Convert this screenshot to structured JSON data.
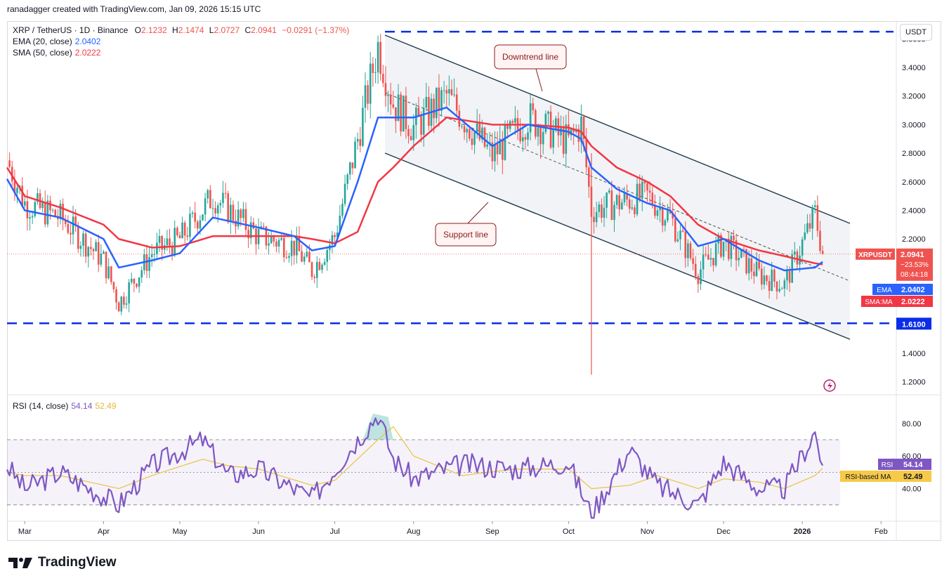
{
  "header": {
    "credit": "ranadagger created with TradingView.com, Jan 09, 2026 15:15 UTC"
  },
  "legend": {
    "symbol": "XRP / TetherUS · 1D · Binance",
    "o_label": "O",
    "o": "2.1232",
    "h_label": "H",
    "h": "2.1474",
    "l_label": "L",
    "l": "2.0727",
    "c_label": "C",
    "c": "2.0941",
    "change": "−0.0291 (−1.37%)",
    "ema_label": "EMA (20, close)",
    "ema_value": "2.0402",
    "sma_label": "SMA (50, close)",
    "sma_value": "2.0222",
    "rsi_label": "RSI (14, close)",
    "rsi_value": "54.14",
    "rsi_ma_value": "52.49"
  },
  "currency_button": "USDT",
  "annotations": {
    "downtrend": "Downtrend line",
    "support": "Support line"
  },
  "price_axis": {
    "ticks": [
      "3.6000",
      "3.4000",
      "3.2000",
      "3.0000",
      "2.8000",
      "2.6000",
      "2.4000",
      "2.2000",
      "1.4000",
      "1.2000"
    ],
    "tick_values": [
      3.6,
      3.4,
      3.2,
      3.0,
      2.8,
      2.6,
      2.4,
      2.2,
      1.4,
      1.2
    ],
    "last_label": "XRPUSDT",
    "last_value": "2.0941",
    "last_change": "−23.53%",
    "countdown": "08:44:18",
    "ema_tag": "EMA",
    "ema_tag_value": "2.0402",
    "sma_tag": "SMA:MA",
    "sma_tag_value": "2.0222",
    "level_tag": "1.6100"
  },
  "rsi_axis": {
    "ticks": [
      "80.00",
      "60.00",
      "40.00"
    ],
    "tick_values": [
      80,
      60,
      40
    ],
    "rsi_tag": "RSI",
    "rsi_tag_value": "54.14",
    "ma_tag": "RSI-based MA",
    "ma_tag_value": "52.49"
  },
  "time_axis": {
    "labels": [
      "Mar",
      "Apr",
      "May",
      "Jun",
      "Jul",
      "Aug",
      "Sep",
      "Oct",
      "Nov",
      "Dec",
      "2026",
      "Feb"
    ]
  },
  "colors": {
    "up": "#26a69a",
    "down": "#ef5350",
    "ema": "#2962ff",
    "sma": "#f23645",
    "rsi": "#7e57c2",
    "rsi_ma": "#f7c948",
    "level": "#0a2ee8",
    "trendline": "#1e3a4c"
  },
  "brand": {
    "name": "TradingView"
  },
  "chart_data": [
    {
      "type": "line",
      "title": "XRP / TetherUS · 1D · Binance",
      "x": [
        "2025-02-22",
        "2025-03-01",
        "2025-03-15",
        "2025-04-01",
        "2025-04-07",
        "2025-04-20",
        "2025-05-01",
        "2025-05-14",
        "2025-06-01",
        "2025-06-15",
        "2025-06-22",
        "2025-07-01",
        "2025-07-10",
        "2025-07-18",
        "2025-07-24",
        "2025-08-01",
        "2025-08-14",
        "2025-09-01",
        "2025-09-15",
        "2025-10-01",
        "2025-10-06",
        "2025-10-10",
        "2025-10-20",
        "2025-11-01",
        "2025-11-10",
        "2025-11-21",
        "2025-12-01",
        "2025-12-15",
        "2025-12-25",
        "2026-01-06",
        "2026-01-09"
      ],
      "series": [
        {
          "name": "XRPUSDT",
          "values": [
            2.75,
            2.45,
            2.35,
            2.05,
            1.75,
            2.1,
            2.2,
            2.5,
            2.22,
            2.15,
            1.98,
            2.22,
            2.9,
            3.55,
            3.15,
            2.98,
            3.2,
            2.78,
            3.05,
            2.88,
            3.0,
            2.4,
            2.45,
            2.5,
            2.35,
            1.97,
            2.18,
            1.95,
            1.88,
            2.38,
            2.0941
          ]
        },
        {
          "name": "EMA (20, close)",
          "values": [
            2.62,
            2.4,
            2.35,
            2.2,
            2.0,
            2.05,
            2.1,
            2.35,
            2.28,
            2.22,
            2.12,
            2.15,
            2.6,
            3.05,
            3.05,
            3.05,
            3.12,
            2.85,
            3.0,
            2.95,
            2.9,
            2.7,
            2.55,
            2.45,
            2.4,
            2.15,
            2.2,
            2.05,
            1.98,
            2.0,
            2.0402
          ]
        },
        {
          "name": "SMA (50, close)",
          "values": [
            2.7,
            2.5,
            2.42,
            2.3,
            2.2,
            2.14,
            2.15,
            2.22,
            2.22,
            2.22,
            2.2,
            2.17,
            2.25,
            2.6,
            2.7,
            2.85,
            3.05,
            3.0,
            3.0,
            2.98,
            2.95,
            2.85,
            2.7,
            2.6,
            2.5,
            2.3,
            2.2,
            2.12,
            2.08,
            2.03,
            2.0222
          ]
        }
      ],
      "levels": [
        3.65,
        1.61
      ],
      "ylim": [
        1.12,
        3.7
      ],
      "ylabel": ""
    },
    {
      "type": "line",
      "title": "RSI (14, close)",
      "x": [
        "2025-02-22",
        "2025-03-01",
        "2025-03-15",
        "2025-04-07",
        "2025-04-20",
        "2025-05-10",
        "2025-05-20",
        "2025-06-01",
        "2025-06-22",
        "2025-07-01",
        "2025-07-18",
        "2025-07-24",
        "2025-08-01",
        "2025-08-20",
        "2025-09-10",
        "2025-10-01",
        "2025-10-10",
        "2025-10-25",
        "2025-11-05",
        "2025-11-21",
        "2025-12-01",
        "2025-12-15",
        "2025-12-25",
        "2026-01-06",
        "2026-01-09"
      ],
      "series": [
        {
          "name": "RSI",
          "values": [
            54,
            40,
            50,
            30,
            54,
            70,
            48,
            52,
            34,
            52,
            86,
            58,
            46,
            55,
            52,
            56,
            24,
            64,
            42,
            30,
            56,
            40,
            40,
            75,
            54.14
          ]
        },
        {
          "name": "RSI-based MA",
          "values": [
            50,
            48,
            48,
            40,
            48,
            58,
            54,
            52,
            42,
            45,
            70,
            78,
            60,
            48,
            52,
            52,
            40,
            42,
            48,
            40,
            46,
            44,
            40,
            48,
            52.49
          ]
        }
      ],
      "bands": [
        70,
        50,
        30
      ],
      "ylim": [
        20,
        95
      ]
    }
  ]
}
